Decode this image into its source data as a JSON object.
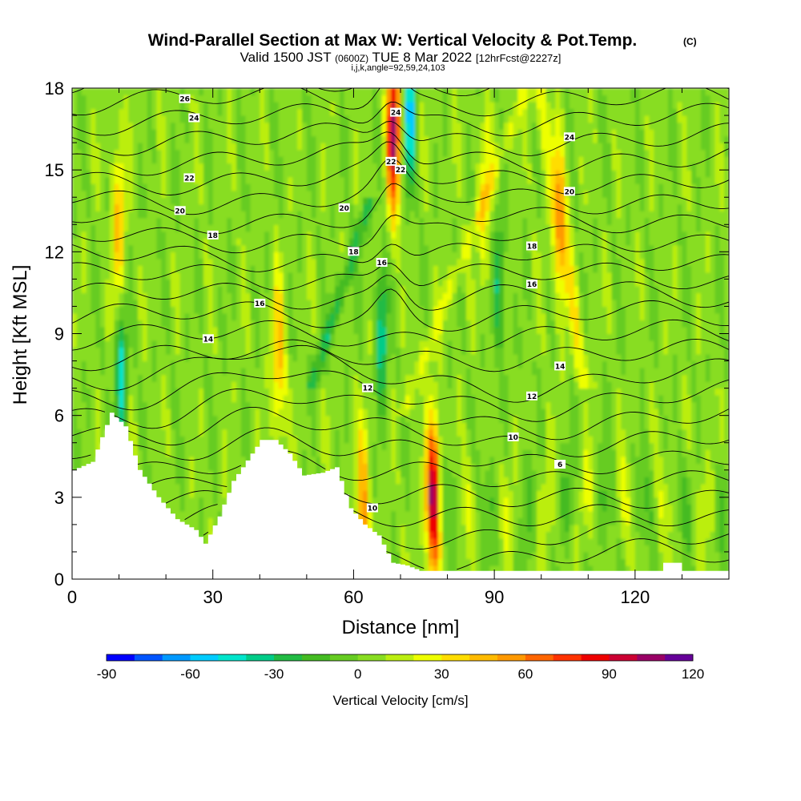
{
  "chart_data": {
    "type": "heatmap",
    "title": "Wind-Parallel Section at Max W: Vertical Velocity & Pot.Temp.",
    "title_mark": "(C)",
    "subtitle_valid": "Valid 1500 JST",
    "subtitle_utc": "(0600Z)",
    "subtitle_date": "TUE 8 Mar 2022",
    "subtitle_fcst": "[12hrFcst@2227z]",
    "subtitle_ijk": "i,j,k,angle=92,59,24,103",
    "xlabel": "Distance [nm]",
    "ylabel": "Height [Kft MSL]",
    "xlim": [
      0,
      140
    ],
    "ylim": [
      0,
      18
    ],
    "x_ticks": [
      "0",
      "30",
      "60",
      "90",
      "120"
    ],
    "y_ticks": [
      "0",
      "3",
      "6",
      "9",
      "12",
      "15",
      "18"
    ],
    "colorbar": {
      "title": "Vertical Velocity [cm/s]",
      "range": [
        -90,
        120
      ],
      "step": 10,
      "tick_labels": [
        "-90",
        "-60",
        "-30",
        "0",
        "30",
        "60",
        "90",
        "120"
      ],
      "colors": [
        "#0000ff",
        "#0055ff",
        "#0099ff",
        "#00ccff",
        "#00e5cc",
        "#00cc88",
        "#22bb44",
        "#44bb22",
        "#66cc22",
        "#88dd22",
        "#bbee11",
        "#eeff00",
        "#ffdd00",
        "#ffbb00",
        "#ff9900",
        "#ff6600",
        "#ff3300",
        "#ee0000",
        "#cc0033",
        "#990066",
        "#660099"
      ]
    },
    "updraft_peaks": [
      {
        "x": 10,
        "z": 13,
        "w": 40
      },
      {
        "x": 44,
        "z": 8,
        "w": 40
      },
      {
        "x": 62,
        "z": 2.5,
        "w": 50
      },
      {
        "x": 68.5,
        "z": 16.5,
        "w": 100
      },
      {
        "x": 77,
        "z": 3,
        "w": 90
      },
      {
        "x": 88,
        "z": 14,
        "w": 25
      },
      {
        "x": 104,
        "z": 13,
        "w": 40
      }
    ],
    "downdraft_peaks": [
      {
        "x": 10.5,
        "z": 7.5,
        "w": -50
      },
      {
        "x": 66,
        "z": 9,
        "w": -45
      },
      {
        "x": 72,
        "z": 17,
        "w": -60
      },
      {
        "x": 91,
        "z": 11,
        "w": -35
      }
    ],
    "theta_contour_labels": [
      "6",
      "10",
      "10",
      "12",
      "12",
      "14",
      "14",
      "16",
      "16",
      "16",
      "18",
      "18",
      "18",
      "20",
      "20",
      "20",
      "22",
      "22",
      "22",
      "24",
      "24",
      "24",
      "26"
    ],
    "terrain_heights_kft": [
      [
        0,
        4.0
      ],
      [
        4,
        4.3
      ],
      [
        8,
        6.1
      ],
      [
        11,
        5.6
      ],
      [
        14,
        4.0
      ],
      [
        18,
        3.0
      ],
      [
        22,
        2.2
      ],
      [
        26,
        1.8
      ],
      [
        28,
        1.3
      ],
      [
        31,
        2.3
      ],
      [
        34,
        3.6
      ],
      [
        38,
        4.6
      ],
      [
        40,
        5.1
      ],
      [
        43,
        5.1
      ],
      [
        46,
        4.6
      ],
      [
        49,
        3.8
      ],
      [
        53,
        3.9
      ],
      [
        56,
        4.1
      ],
      [
        59,
        2.6
      ],
      [
        62,
        2.0
      ],
      [
        65,
        1.6
      ],
      [
        68,
        0.6
      ],
      [
        71,
        0.5
      ],
      [
        74,
        0.3
      ],
      [
        77,
        0.3
      ],
      [
        100,
        0.3
      ],
      [
        125,
        0.3
      ],
      [
        126,
        0.6
      ],
      [
        129,
        0.6
      ],
      [
        130,
        0.3
      ],
      [
        140,
        0.3
      ]
    ]
  }
}
